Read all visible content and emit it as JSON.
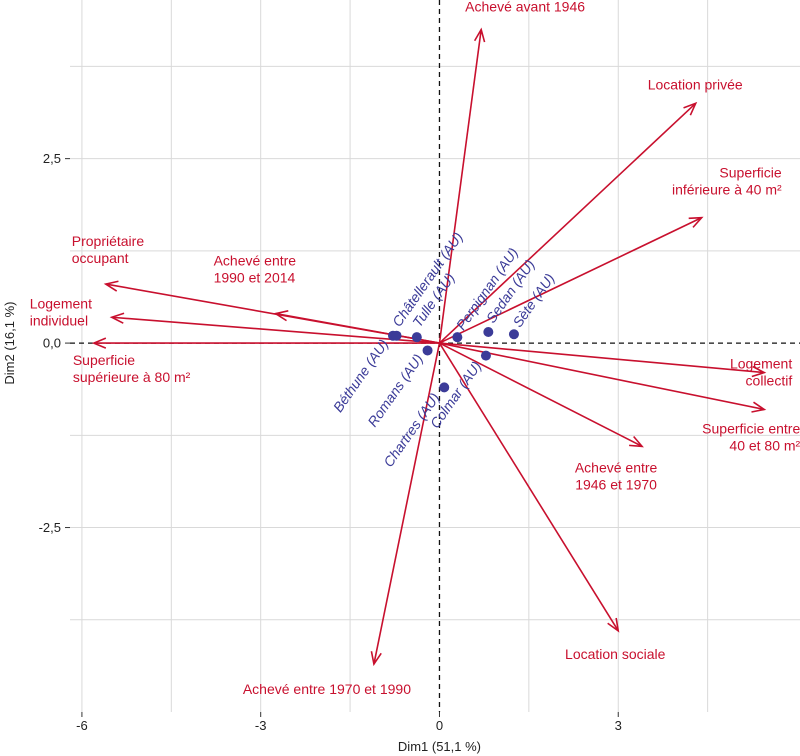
{
  "chart_data": {
    "type": "scatter",
    "xlabel": "Dim1 (51,1 %)",
    "ylabel": "Dim2 (16,1 %)",
    "xlim": [
      -6.2,
      6.05
    ],
    "ylim": [
      -5.0,
      4.65
    ],
    "x_ticks": [
      {
        "value": -6,
        "label": "-6"
      },
      {
        "value": -3,
        "label": "-3"
      },
      {
        "value": 0,
        "label": "0"
      },
      {
        "value": 3,
        "label": "3"
      }
    ],
    "y_ticks": [
      {
        "value": 2.5,
        "label": "2,5"
      },
      {
        "value": 0,
        "label": "0,0"
      },
      {
        "value": -2.5,
        "label": "-2,5"
      }
    ],
    "colors": {
      "variables": "#c8102e",
      "individuals": "#3b3b98",
      "grid": "#d9d9d9"
    },
    "variables": [
      {
        "name": "Achevé avant 1946",
        "x": 0.7,
        "y": 4.25,
        "lines": [
          "Achevé avant 1946"
        ],
        "anchor": "start"
      },
      {
        "name": "Location privée",
        "x": 4.3,
        "y": 3.25,
        "lines": [
          "Location privée"
        ],
        "anchor": "start"
      },
      {
        "name": "Superficie inférieure à 40 m²",
        "x": 4.4,
        "y": 1.7,
        "lines": [
          "Superficie",
          "inférieure à 40 m²"
        ],
        "anchor": "end"
      },
      {
        "name": "Propriétaire occupant",
        "x": -5.6,
        "y": 0.8,
        "lines": [
          "Propriétaire",
          "occupant"
        ],
        "anchor": "start"
      },
      {
        "name": "Achevé entre 1990 et 2014",
        "x": -2.75,
        "y": 0.4,
        "lines": [
          "Achevé entre",
          "1990 et 2014"
        ],
        "anchor": "start"
      },
      {
        "name": "Logement individuel",
        "x": -5.5,
        "y": 0.35,
        "lines": [
          "Logement",
          "individuel"
        ],
        "anchor": "start"
      },
      {
        "name": "Superficie supérieure à 80 m²",
        "x": -5.8,
        "y": 0.0,
        "lines": [
          "Superficie",
          "supérieure à 80 m²"
        ],
        "anchor": "start"
      },
      {
        "name": "Logement collectif",
        "x": 5.45,
        "y": -0.4,
        "lines": [
          "Logement",
          "collectif"
        ],
        "anchor": "end"
      },
      {
        "name": "Superficie entre 40 et 80 m²",
        "x": 5.45,
        "y": -0.9,
        "lines": [
          "Superficie entre",
          "40 et 80 m²"
        ],
        "anchor": "end"
      },
      {
        "name": "Achevé entre 1946 et 1970",
        "x": 3.4,
        "y": -1.4,
        "lines": [
          "Achevé entre",
          "1946 et 1970"
        ],
        "anchor": "middle"
      },
      {
        "name": "Location sociale",
        "x": 3.0,
        "y": -3.9,
        "lines": [
          "Location sociale"
        ],
        "anchor": "middle"
      },
      {
        "name": "Achevé entre 1970 et 1990",
        "x": -1.1,
        "y": -4.35,
        "lines": [
          "Achevé entre 1970 et 1990"
        ],
        "anchor": "middle"
      }
    ],
    "individuals": [
      {
        "name": "Béthune (AU)",
        "x": -0.78,
        "y": 0.1
      },
      {
        "name": "Châtellerault (AU)",
        "x": -0.72,
        "y": 0.1
      },
      {
        "name": "Tulle (AU)",
        "x": -0.38,
        "y": 0.08
      },
      {
        "name": "Romans (AU)",
        "x": -0.2,
        "y": -0.1
      },
      {
        "name": "Perpignan (AU)",
        "x": 0.3,
        "y": 0.08
      },
      {
        "name": "Sedan (AU)",
        "x": 0.82,
        "y": 0.15
      },
      {
        "name": "Sète (AU)",
        "x": 1.25,
        "y": 0.12
      },
      {
        "name": "Colmar (AU)",
        "x": 0.78,
        "y": -0.17
      },
      {
        "name": "Chartres (AU)",
        "x": 0.08,
        "y": -0.6
      }
    ]
  }
}
